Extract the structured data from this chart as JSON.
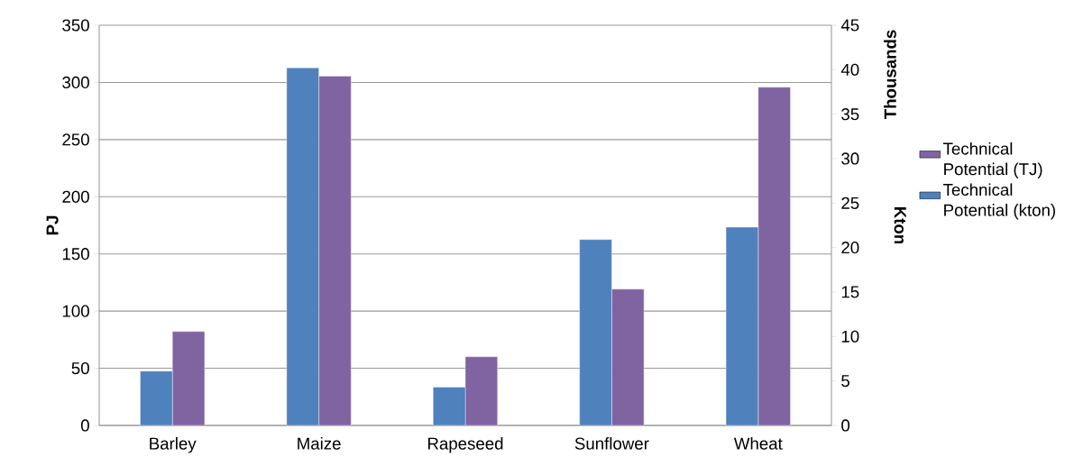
{
  "chart_data": {
    "type": "bar",
    "ylabel": "PJ",
    "y2label": "Kton",
    "annotations": [
      "Thousands"
    ],
    "categories": [
      "Barley",
      "Maize",
      "Rapeseed",
      "Sunflower",
      "Wheat"
    ],
    "series": [
      {
        "name": "Technical Potential (TJ)",
        "color": "#8064a2",
        "axis": "y",
        "values": [
          82.1,
          305.5,
          60.1,
          119.2,
          295.8
        ]
      },
      {
        "name": "Technical Potential (kton)",
        "color": "#4f81bd",
        "axis": "y2",
        "values": [
          6.1,
          40.2,
          4.3,
          20.9,
          22.3
        ]
      }
    ],
    "ylim": [
      0,
      350
    ],
    "yticks": [
      0,
      50,
      100,
      150,
      200,
      250,
      300,
      350
    ],
    "y2lim": [
      0,
      45
    ],
    "y2ticks": [
      0,
      5,
      10,
      15,
      20,
      25,
      30,
      35,
      40,
      45
    ],
    "grid": "y",
    "legend": "right"
  }
}
